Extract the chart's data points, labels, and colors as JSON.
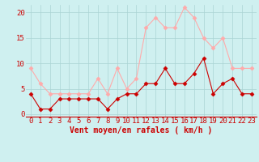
{
  "x": [
    0,
    1,
    2,
    3,
    4,
    5,
    6,
    7,
    8,
    9,
    10,
    11,
    12,
    13,
    14,
    15,
    16,
    17,
    18,
    19,
    20,
    21,
    22,
    23
  ],
  "wind_avg": [
    4,
    1,
    1,
    3,
    3,
    3,
    3,
    3,
    1,
    3,
    4,
    4,
    6,
    6,
    9,
    6,
    6,
    8,
    11,
    4,
    6,
    7,
    4,
    4
  ],
  "wind_gust": [
    9,
    6,
    4,
    4,
    4,
    4,
    4,
    7,
    4,
    9,
    5,
    7,
    17,
    19,
    17,
    17,
    21,
    19,
    15,
    13,
    15,
    9,
    9,
    9
  ],
  "line_color_avg": "#cc0000",
  "line_color_gust": "#ffaaaa",
  "bg_color": "#cff0f0",
  "grid_color": "#aad4d4",
  "axis_color": "#cc0000",
  "xlabel": "Vent moyen/en rafales ( km/h )",
  "ylim": [
    -0.5,
    21.5
  ],
  "yticks": [
    0,
    5,
    10,
    15,
    20
  ],
  "xlabel_fontsize": 7,
  "tick_fontsize": 6.5
}
